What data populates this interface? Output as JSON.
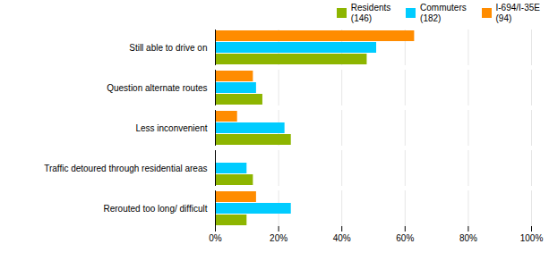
{
  "chart_data": {
    "type": "bar",
    "orientation": "horizontal",
    "categories": [
      "Still able to drive on",
      "Question alternate routes",
      "Less inconvenient",
      "Traffic detoured through residential areas",
      "Rerouted too long/ difficult"
    ],
    "series": [
      {
        "name": "Residents \n(146)",
        "color": "#8DB500",
        "values": [
          0.48,
          0.15,
          0.24,
          0.12,
          0.1
        ]
      },
      {
        "name": "Commuters \n(182)",
        "color": "#00CCFF",
        "values": [
          0.51,
          0.13,
          0.22,
          0.1,
          0.24
        ]
      },
      {
        "name": "I-694/I-35E\n(94)",
        "color": "#FF8C00",
        "values": [
          0.63,
          0.12,
          0.07,
          0.0,
          0.13
        ]
      }
    ],
    "xlim": [
      0,
      1.0
    ],
    "xticks": [
      {
        "value": 0,
        "label": "0%"
      },
      {
        "value": 0.2,
        "label": "20%"
      },
      {
        "value": 0.4,
        "label": "40%"
      },
      {
        "value": 0.6,
        "label": "60%"
      },
      {
        "value": 0.8,
        "label": "80%"
      },
      {
        "value": 1.0,
        "label": "100%"
      }
    ],
    "grid": true,
    "legend": "upper right"
  }
}
